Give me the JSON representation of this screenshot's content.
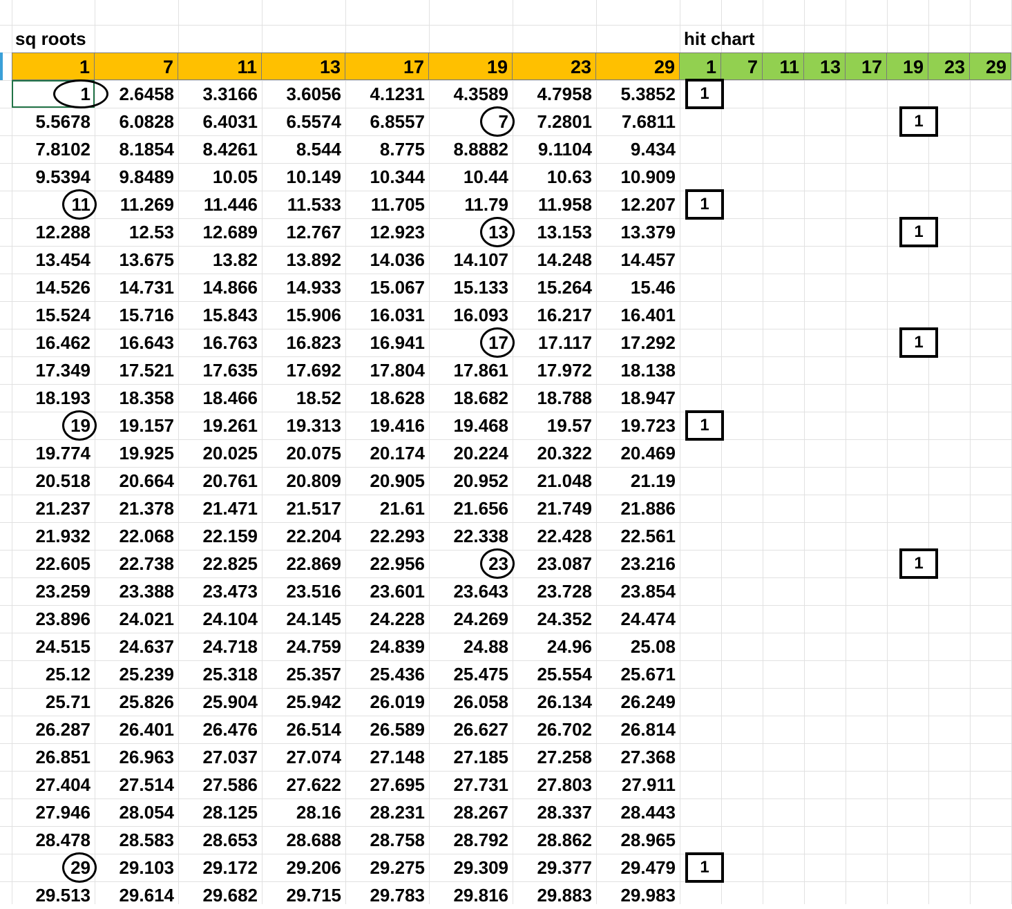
{
  "titles": {
    "left": "sq roots",
    "right": "hit chart"
  },
  "sq_headers": [
    "1",
    "7",
    "11",
    "13",
    "17",
    "19",
    "23",
    "29"
  ],
  "hit_headers": [
    "1",
    "7",
    "11",
    "13",
    "17",
    "19",
    "23",
    "29"
  ],
  "rows": [
    [
      "1",
      "2.6458",
      "3.3166",
      "3.6056",
      "4.1231",
      "4.3589",
      "4.7958",
      "5.3852"
    ],
    [
      "5.5678",
      "6.0828",
      "6.4031",
      "6.5574",
      "6.8557",
      "7",
      "7.2801",
      "7.6811"
    ],
    [
      "7.8102",
      "8.1854",
      "8.4261",
      "8.544",
      "8.775",
      "8.8882",
      "9.1104",
      "9.434"
    ],
    [
      "9.5394",
      "9.8489",
      "10.05",
      "10.149",
      "10.344",
      "10.44",
      "10.63",
      "10.909"
    ],
    [
      "11",
      "11.269",
      "11.446",
      "11.533",
      "11.705",
      "11.79",
      "11.958",
      "12.207"
    ],
    [
      "12.288",
      "12.53",
      "12.689",
      "12.767",
      "12.923",
      "13",
      "13.153",
      "13.379"
    ],
    [
      "13.454",
      "13.675",
      "13.82",
      "13.892",
      "14.036",
      "14.107",
      "14.248",
      "14.457"
    ],
    [
      "14.526",
      "14.731",
      "14.866",
      "14.933",
      "15.067",
      "15.133",
      "15.264",
      "15.46"
    ],
    [
      "15.524",
      "15.716",
      "15.843",
      "15.906",
      "16.031",
      "16.093",
      "16.217",
      "16.401"
    ],
    [
      "16.462",
      "16.643",
      "16.763",
      "16.823",
      "16.941",
      "17",
      "17.117",
      "17.292"
    ],
    [
      "17.349",
      "17.521",
      "17.635",
      "17.692",
      "17.804",
      "17.861",
      "17.972",
      "18.138"
    ],
    [
      "18.193",
      "18.358",
      "18.466",
      "18.52",
      "18.628",
      "18.682",
      "18.788",
      "18.947"
    ],
    [
      "19",
      "19.157",
      "19.261",
      "19.313",
      "19.416",
      "19.468",
      "19.57",
      "19.723"
    ],
    [
      "19.774",
      "19.925",
      "20.025",
      "20.075",
      "20.174",
      "20.224",
      "20.322",
      "20.469"
    ],
    [
      "20.518",
      "20.664",
      "20.761",
      "20.809",
      "20.905",
      "20.952",
      "21.048",
      "21.19"
    ],
    [
      "21.237",
      "21.378",
      "21.471",
      "21.517",
      "21.61",
      "21.656",
      "21.749",
      "21.886"
    ],
    [
      "21.932",
      "22.068",
      "22.159",
      "22.204",
      "22.293",
      "22.338",
      "22.428",
      "22.561"
    ],
    [
      "22.605",
      "22.738",
      "22.825",
      "22.869",
      "22.956",
      "23",
      "23.087",
      "23.216"
    ],
    [
      "23.259",
      "23.388",
      "23.473",
      "23.516",
      "23.601",
      "23.643",
      "23.728",
      "23.854"
    ],
    [
      "23.896",
      "24.021",
      "24.104",
      "24.145",
      "24.228",
      "24.269",
      "24.352",
      "24.474"
    ],
    [
      "24.515",
      "24.637",
      "24.718",
      "24.759",
      "24.839",
      "24.88",
      "24.96",
      "25.08"
    ],
    [
      "25.12",
      "25.239",
      "25.318",
      "25.357",
      "25.436",
      "25.475",
      "25.554",
      "25.671"
    ],
    [
      "25.71",
      "25.826",
      "25.904",
      "25.942",
      "26.019",
      "26.058",
      "26.134",
      "26.249"
    ],
    [
      "26.287",
      "26.401",
      "26.476",
      "26.514",
      "26.589",
      "26.627",
      "26.702",
      "26.814"
    ],
    [
      "26.851",
      "26.963",
      "27.037",
      "27.074",
      "27.148",
      "27.185",
      "27.258",
      "27.368"
    ],
    [
      "27.404",
      "27.514",
      "27.586",
      "27.622",
      "27.695",
      "27.731",
      "27.803",
      "27.911"
    ],
    [
      "27.946",
      "28.054",
      "28.125",
      "28.16",
      "28.231",
      "28.267",
      "28.337",
      "28.443"
    ],
    [
      "28.478",
      "28.583",
      "28.653",
      "28.688",
      "28.758",
      "28.792",
      "28.862",
      "28.965"
    ],
    [
      "29",
      "29.103",
      "29.172",
      "29.206",
      "29.275",
      "29.309",
      "29.377",
      "29.479"
    ],
    [
      "29.513",
      "29.614",
      "29.682",
      "29.715",
      "29.783",
      "29.816",
      "29.883",
      "29.983"
    ]
  ],
  "circled": [
    {
      "row": 0,
      "col": 0
    },
    {
      "row": 1,
      "col": 5
    },
    {
      "row": 4,
      "col": 0
    },
    {
      "row": 5,
      "col": 5
    },
    {
      "row": 9,
      "col": 5
    },
    {
      "row": 12,
      "col": 0
    },
    {
      "row": 17,
      "col": 5
    },
    {
      "row": 28,
      "col": 0
    }
  ],
  "hits": [
    {
      "row": 0,
      "col": 0,
      "value": "1"
    },
    {
      "row": 1,
      "col": 5,
      "value": "1"
    },
    {
      "row": 4,
      "col": 0,
      "value": "1"
    },
    {
      "row": 5,
      "col": 5,
      "value": "1"
    },
    {
      "row": 9,
      "col": 5,
      "value": "1"
    },
    {
      "row": 12,
      "col": 0,
      "value": "1"
    },
    {
      "row": 17,
      "col": 5,
      "value": "1"
    },
    {
      "row": 28,
      "col": 0,
      "value": "1"
    }
  ],
  "colors": {
    "orange_header": "#ffc000",
    "green_header": "#92d050",
    "gridline": "#e1e1e1",
    "selection": "#217346"
  }
}
